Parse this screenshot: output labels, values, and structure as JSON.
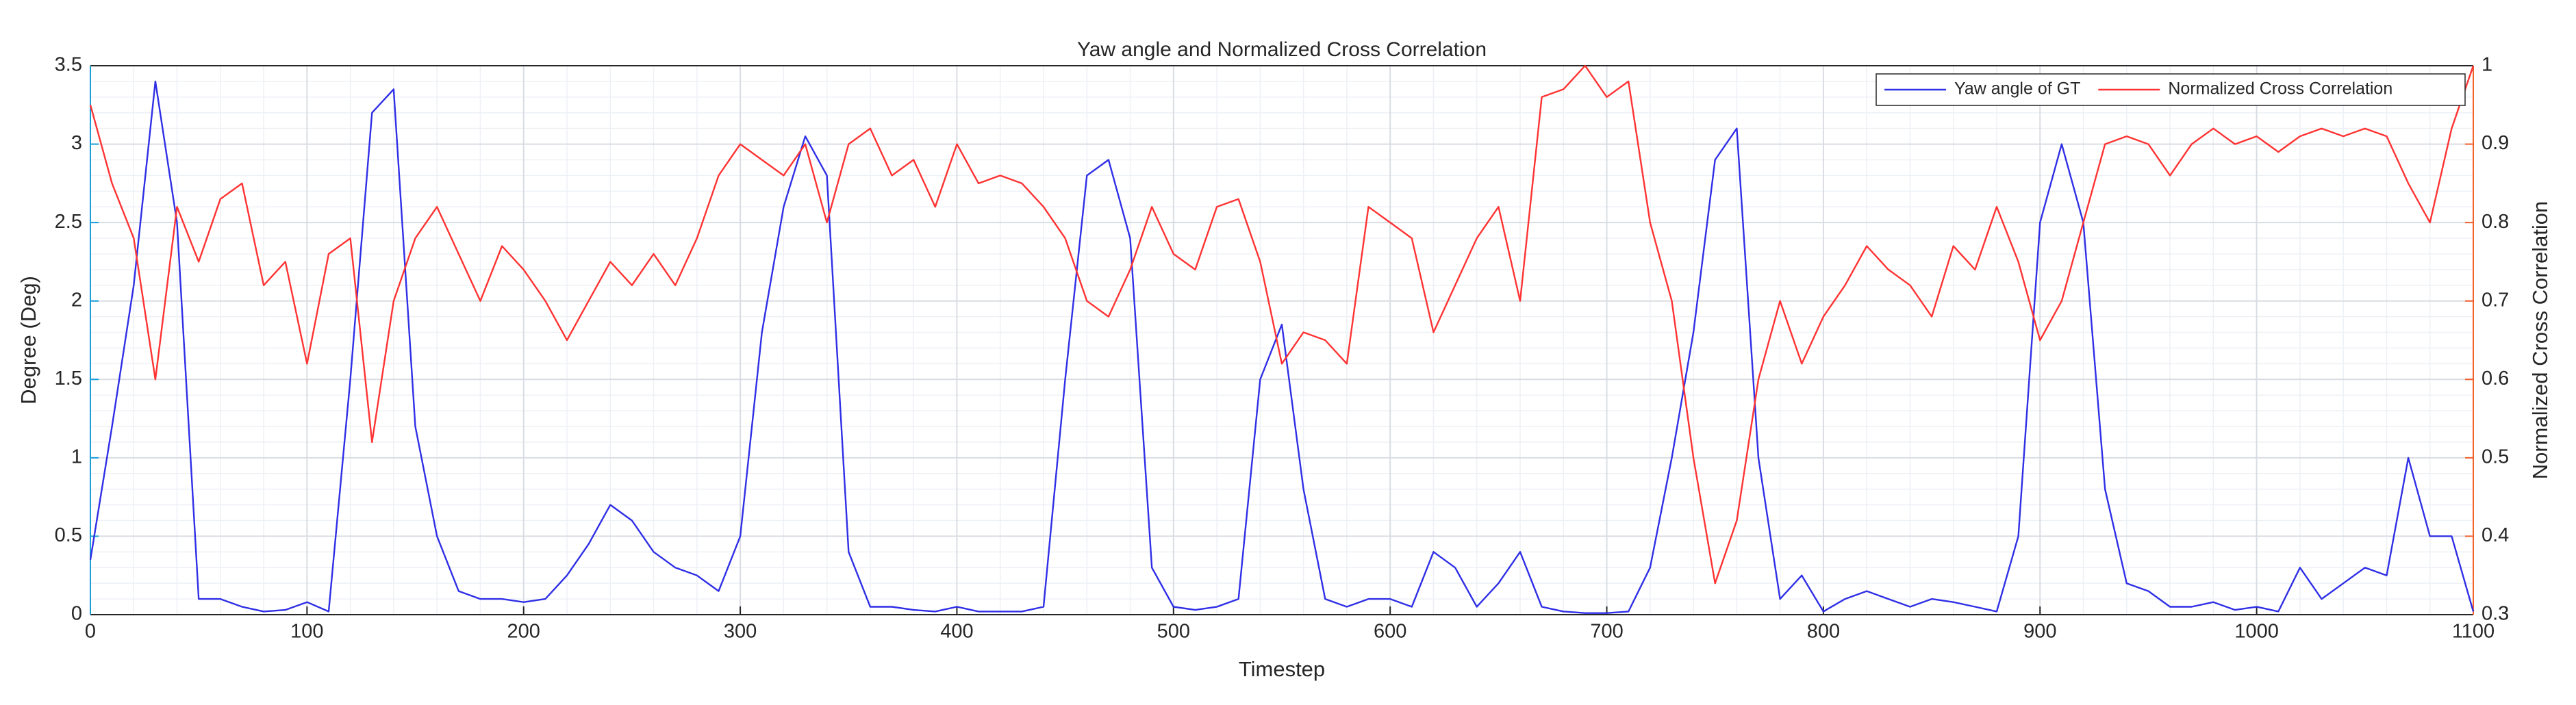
{
  "chart_data": {
    "type": "line",
    "title": "Yaw angle and Normalized Cross Correlation",
    "x_label": "Timestep",
    "y_label": "Degree (Deg)",
    "y2_label": "Normalized Cross Correlation",
    "x": [
      0,
      10,
      20,
      30,
      40,
      50,
      60,
      70,
      80,
      90,
      100,
      110,
      120,
      130,
      140,
      150,
      160,
      170,
      180,
      190,
      200,
      210,
      220,
      230,
      240,
      250,
      260,
      270,
      280,
      290,
      300,
      310,
      320,
      330,
      340,
      350,
      360,
      370,
      380,
      390,
      400,
      410,
      420,
      430,
      440,
      450,
      460,
      470,
      480,
      490,
      500,
      510,
      520,
      530,
      540,
      550,
      560,
      570,
      580,
      590,
      600,
      610,
      620,
      630,
      640,
      650,
      660,
      670,
      680,
      690,
      700,
      710,
      720,
      730,
      740,
      750,
      760,
      770,
      780,
      790,
      800,
      810,
      820,
      830,
      840,
      850,
      860,
      870,
      880,
      890,
      900,
      910,
      920,
      930,
      940,
      950,
      960,
      970,
      980,
      990,
      1000,
      1010,
      1020,
      1030,
      1040,
      1050,
      1060,
      1070,
      1080,
      1090,
      1100
    ],
    "series": [
      {
        "name": "Yaw angle of GT",
        "color": "#2f2fe6",
        "axis": "y",
        "values": [
          0.35,
          1.2,
          2.1,
          3.4,
          2.5,
          0.1,
          0.1,
          0.05,
          0.02,
          0.03,
          0.08,
          0.02,
          1.5,
          3.2,
          3.35,
          1.2,
          0.5,
          0.15,
          0.1,
          0.1,
          0.08,
          0.1,
          0.25,
          0.45,
          0.7,
          0.6,
          0.4,
          0.3,
          0.25,
          0.15,
          0.5,
          1.8,
          2.6,
          3.05,
          2.8,
          0.4,
          0.05,
          0.05,
          0.03,
          0.02,
          0.05,
          0.02,
          0.02,
          0.02,
          0.05,
          1.5,
          2.8,
          2.9,
          2.4,
          0.3,
          0.05,
          0.03,
          0.05,
          0.1,
          1.5,
          1.85,
          0.8,
          0.1,
          0.05,
          0.1,
          0.1,
          0.05,
          0.4,
          0.3,
          0.05,
          0.2,
          0.4,
          0.05,
          0.02,
          0.01,
          0.01,
          0.02,
          0.3,
          1.0,
          1.8,
          2.9,
          3.1,
          1.0,
          0.1,
          0.25,
          0.02,
          0.1,
          0.15,
          0.1,
          0.05,
          0.1,
          0.08,
          0.05,
          0.02,
          0.5,
          2.5,
          3.0,
          2.5,
          0.8,
          0.2,
          0.15,
          0.05,
          0.05,
          0.08,
          0.03,
          0.05,
          0.02,
          0.3,
          0.1,
          0.2,
          0.3,
          0.25,
          1.0,
          0.5,
          0.5,
          0.02
        ]
      },
      {
        "name": "Normalized Cross Correlation",
        "color": "#ff3333",
        "axis": "y2",
        "values": [
          0.95,
          0.85,
          0.78,
          0.6,
          0.82,
          0.75,
          0.83,
          0.85,
          0.72,
          0.75,
          0.62,
          0.76,
          0.78,
          0.52,
          0.7,
          0.78,
          0.82,
          0.76,
          0.7,
          0.77,
          0.74,
          0.7,
          0.65,
          0.7,
          0.75,
          0.72,
          0.76,
          0.72,
          0.78,
          0.86,
          0.9,
          0.88,
          0.86,
          0.9,
          0.8,
          0.9,
          0.92,
          0.86,
          0.88,
          0.82,
          0.9,
          0.85,
          0.86,
          0.85,
          0.82,
          0.78,
          0.7,
          0.68,
          0.74,
          0.82,
          0.76,
          0.74,
          0.82,
          0.83,
          0.75,
          0.62,
          0.66,
          0.65,
          0.62,
          0.82,
          0.8,
          0.78,
          0.66,
          0.72,
          0.78,
          0.82,
          0.7,
          0.96,
          0.97,
          1.0,
          0.96,
          0.98,
          0.8,
          0.7,
          0.5,
          0.34,
          0.42,
          0.6,
          0.7,
          0.62,
          0.68,
          0.72,
          0.77,
          0.74,
          0.72,
          0.68,
          0.77,
          0.74,
          0.82,
          0.75,
          0.65,
          0.7,
          0.8,
          0.9,
          0.91,
          0.9,
          0.86,
          0.9,
          0.92,
          0.9,
          0.91,
          0.89,
          0.91,
          0.92,
          0.91,
          0.92,
          0.91,
          0.85,
          0.8,
          0.92,
          1.0
        ]
      }
    ],
    "xlim": [
      0,
      1100
    ],
    "xticks": [
      0,
      100,
      200,
      300,
      400,
      500,
      600,
      700,
      800,
      900,
      1000,
      1100
    ],
    "ylim": [
      0,
      3.5
    ],
    "yticks": [
      0,
      0.5,
      1,
      1.5,
      2,
      2.5,
      3,
      3.5
    ],
    "y2lim": [
      0.3,
      1
    ],
    "y2ticks": [
      0.3,
      0.4,
      0.5,
      0.6,
      0.7,
      0.8,
      0.9,
      1
    ],
    "y_axis_color": "#1a9ed9",
    "y2_axis_color": "#f5602c",
    "grid": true,
    "minor_grid": true,
    "legend": "upper right"
  }
}
